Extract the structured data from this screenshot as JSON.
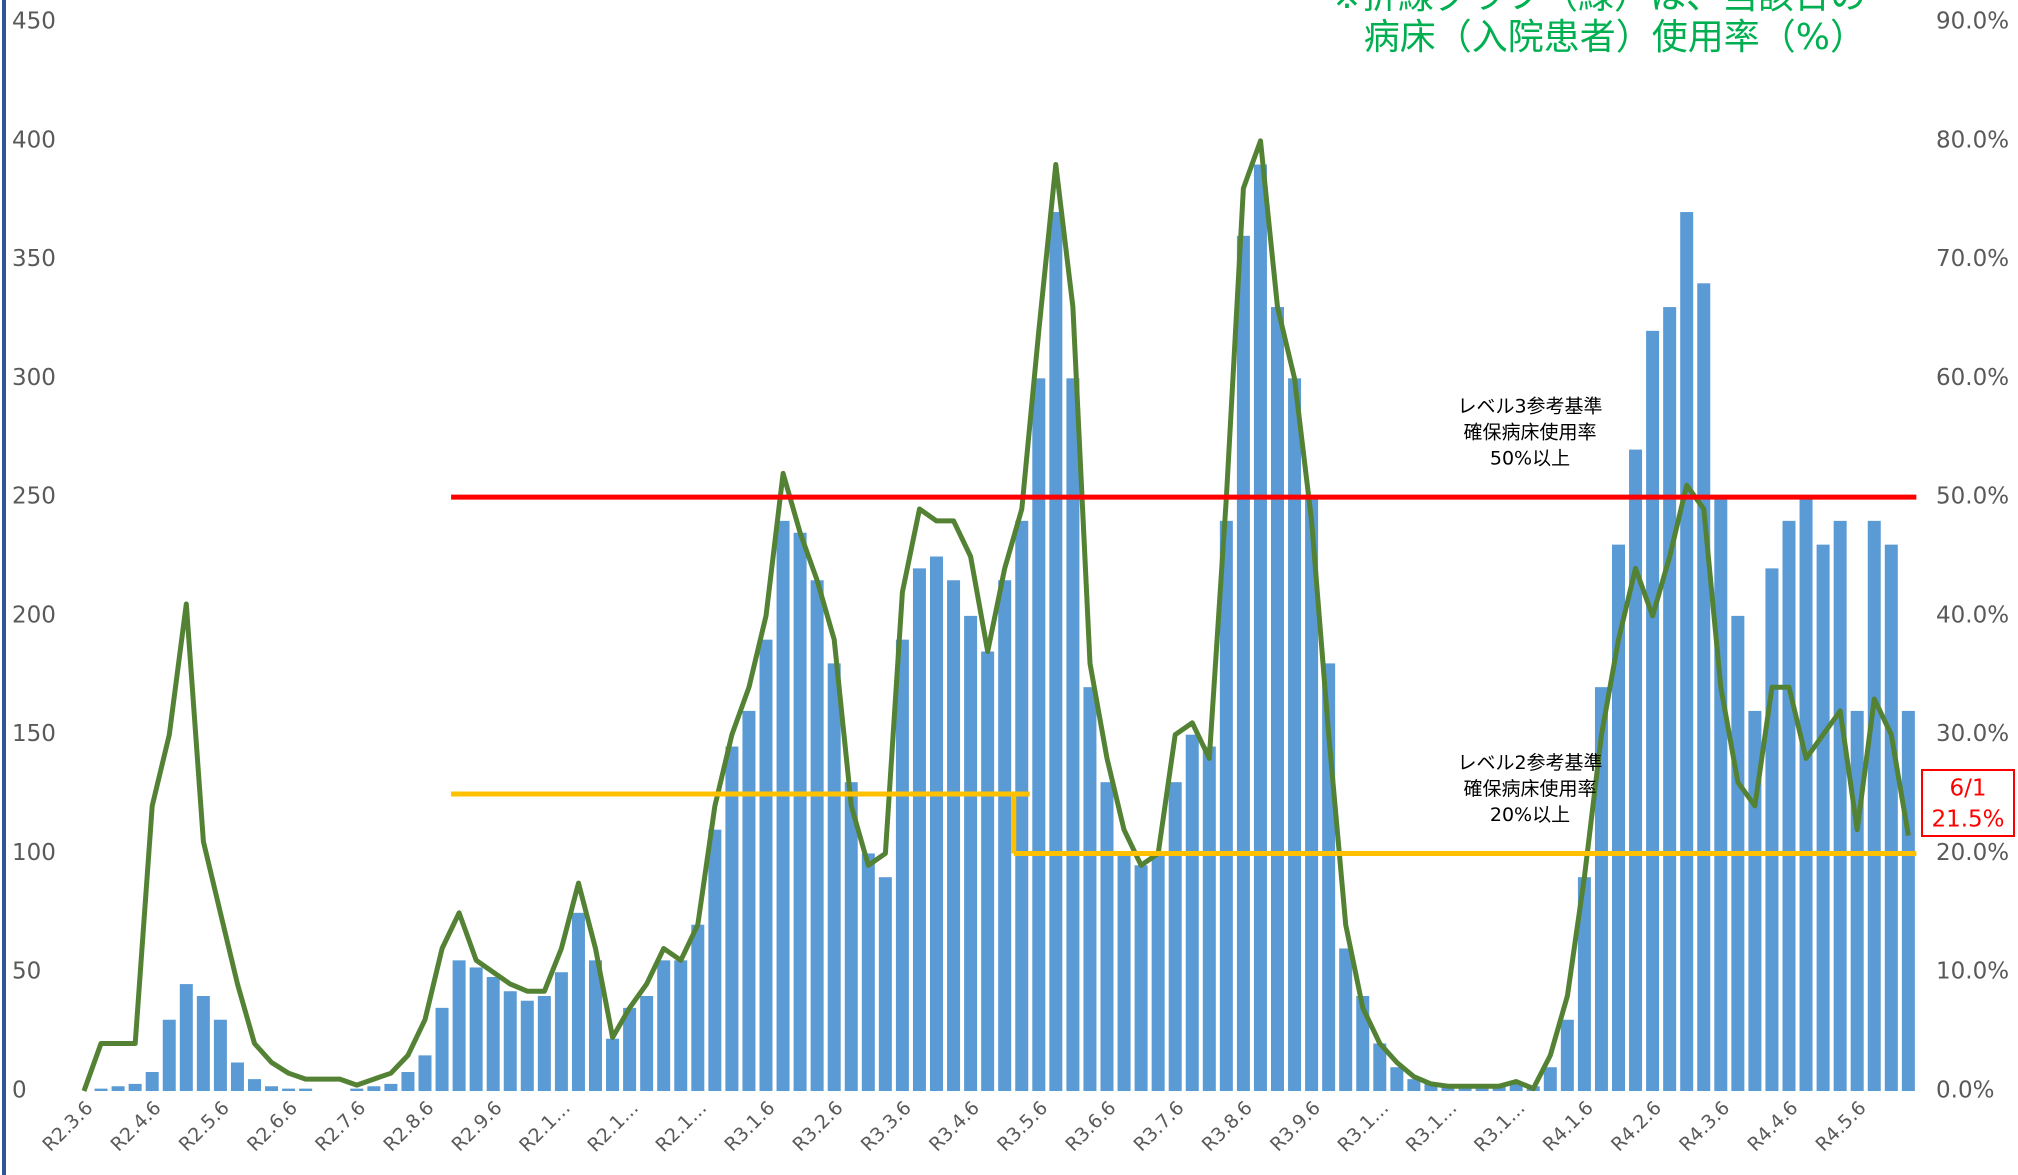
{
  "chart_data": {
    "type": "bar_line",
    "title_lines": [
      "※折線グラフ（緑）は、当該日の",
      "病床（入院患者）使用率（%）"
    ],
    "categories": [
      "R2.3.6",
      null,
      null,
      null,
      "R2.4.6",
      null,
      null,
      null,
      "R2.5.6",
      null,
      null,
      null,
      "R2.6.6",
      null,
      null,
      null,
      "R2.7.6",
      null,
      null,
      null,
      "R2.8.6",
      null,
      null,
      null,
      "R2.9.6",
      null,
      null,
      null,
      "R2.1…",
      null,
      null,
      null,
      "R2.1…",
      null,
      null,
      null,
      "R2.1…",
      null,
      null,
      null,
      "R3.1.6",
      null,
      null,
      null,
      "R3.2.6",
      null,
      null,
      null,
      "R3.3.6",
      null,
      null,
      null,
      "R3.4.6",
      null,
      null,
      null,
      "R3.5.6",
      null,
      null,
      null,
      "R3.6.6",
      null,
      null,
      null,
      "R3.7.6",
      null,
      null,
      null,
      "R3.8.6",
      null,
      null,
      null,
      "R3.9.6",
      null,
      null,
      null,
      "R3.1…",
      null,
      null,
      null,
      "R3.1…",
      null,
      null,
      null,
      "R3.1…",
      null,
      null,
      null,
      "R4.1.6",
      null,
      null,
      null,
      "R4.2.6",
      null,
      null,
      null,
      "R4.3.6",
      null,
      null,
      null,
      "R4.4.6",
      null,
      null,
      null,
      "R4.5.6",
      null,
      null,
      null
    ],
    "series": [
      {
        "kind": "bar",
        "axis": "y",
        "color": "#5b9bd5",
        "values": [
          0,
          1,
          2,
          3,
          8,
          30,
          45,
          40,
          30,
          12,
          5,
          2,
          1,
          1,
          0,
          0,
          1,
          2,
          3,
          8,
          15,
          35,
          55,
          52,
          48,
          42,
          38,
          40,
          50,
          75,
          55,
          22,
          35,
          40,
          55,
          55,
          70,
          110,
          145,
          160,
          190,
          240,
          235,
          215,
          180,
          130,
          100,
          90,
          190,
          220,
          225,
          215,
          200,
          185,
          215,
          240,
          300,
          370,
          300,
          170,
          130,
          100,
          95,
          100,
          130,
          150,
          145,
          240,
          360,
          390,
          330,
          300,
          250,
          180,
          60,
          40,
          20,
          10,
          5,
          3,
          2,
          2,
          2,
          2,
          3,
          2,
          10,
          30,
          90,
          170,
          230,
          270,
          320,
          330,
          370,
          340,
          250,
          200,
          160,
          220,
          240,
          250,
          230,
          240,
          160,
          240,
          230,
          160
        ]
      },
      {
        "kind": "line",
        "axis": "y2",
        "color": "#548235",
        "values": [
          0,
          4,
          4,
          4,
          24,
          30,
          41,
          21,
          15,
          9,
          4,
          2.4,
          1.5,
          1,
          1,
          1,
          0.5,
          1,
          1.5,
          3,
          6,
          12,
          15,
          11,
          10,
          9,
          8.4,
          8.4,
          12,
          17.5,
          12,
          4.5,
          7,
          9,
          12,
          11,
          14,
          24,
          30,
          34,
          40,
          52,
          47,
          43,
          38,
          24,
          19,
          20,
          42,
          49,
          48,
          48,
          45,
          37,
          44,
          49,
          64,
          78,
          66,
          36,
          28,
          22,
          19,
          20,
          30,
          31,
          28,
          50,
          76,
          80,
          66,
          60,
          48,
          30,
          14,
          7,
          4,
          2.4,
          1.2,
          0.6,
          0.4,
          0.4,
          0.4,
          0.4,
          0.8,
          0.2,
          3,
          8,
          18,
          30,
          38,
          44,
          40,
          45,
          51,
          49,
          34,
          26,
          24,
          34,
          34,
          28,
          30,
          32,
          22,
          33,
          30,
          21.5
        ]
      }
    ],
    "ylim": [
      0,
      450
    ],
    "yticks": [
      0,
      50,
      100,
      150,
      200,
      250,
      300,
      350,
      400,
      450
    ],
    "y2lim": [
      0,
      90
    ],
    "y2ticks": [
      {
        "value": 0,
        "label": "0.0%"
      },
      {
        "value": 10,
        "label": "10.0%"
      },
      {
        "value": 20,
        "label": "20.0%"
      },
      {
        "value": 30,
        "label": "30.0%"
      },
      {
        "value": 40,
        "label": "40.0%"
      },
      {
        "value": 50,
        "label": "50.0%"
      },
      {
        "value": 60,
        "label": "60.0%"
      },
      {
        "value": 70,
        "label": "70.0%"
      },
      {
        "value": 80,
        "label": "80.0%"
      },
      {
        "value": 90,
        "label": "90.0%"
      }
    ],
    "reference_lines": [
      {
        "color": "#ff0000",
        "steps": [
          {
            "start": 22,
            "end": 107,
            "value": 50
          }
        ],
        "label_lines": [
          "レベル3参考基準",
          "確保病床使用率",
          "50%以上"
        ]
      },
      {
        "color": "#ffc000",
        "steps": [
          {
            "start": 22,
            "end": 55,
            "value": 25
          },
          {
            "start": 55,
            "end": 107,
            "value": 20
          }
        ],
        "label_lines": [
          "レベル2参考基準",
          "確保病床使用率",
          "20%以上"
        ]
      }
    ],
    "last_point_label": [
      "6/1",
      "21.5%"
    ]
  }
}
